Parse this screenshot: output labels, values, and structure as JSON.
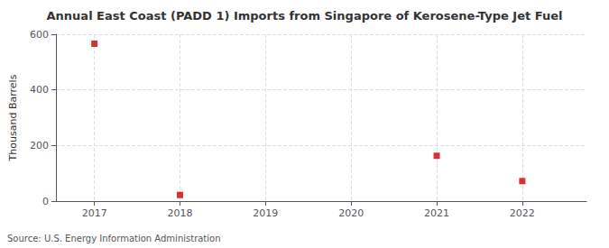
{
  "chart_data": {
    "type": "scatter",
    "title": "Annual East Coast (PADD 1) Imports from Singapore of Kerosene-Type Jet Fuel",
    "ylabel": "Thousand Barrels",
    "source": "Source: U.S. Energy Information Administration",
    "x": [
      2017,
      2018,
      2019,
      2020,
      2021,
      2022
    ],
    "values": [
      566,
      22,
      null,
      null,
      163,
      72
    ],
    "color": "#cc0000",
    "marker": "square",
    "xlim": [
      2016.55,
      2022.75
    ],
    "xticks": [
      2017,
      2018,
      2019,
      2020,
      2021,
      2022
    ],
    "ylim": [
      0,
      600
    ],
    "yticks": [
      0,
      200,
      400,
      600
    ],
    "grid": true
  }
}
